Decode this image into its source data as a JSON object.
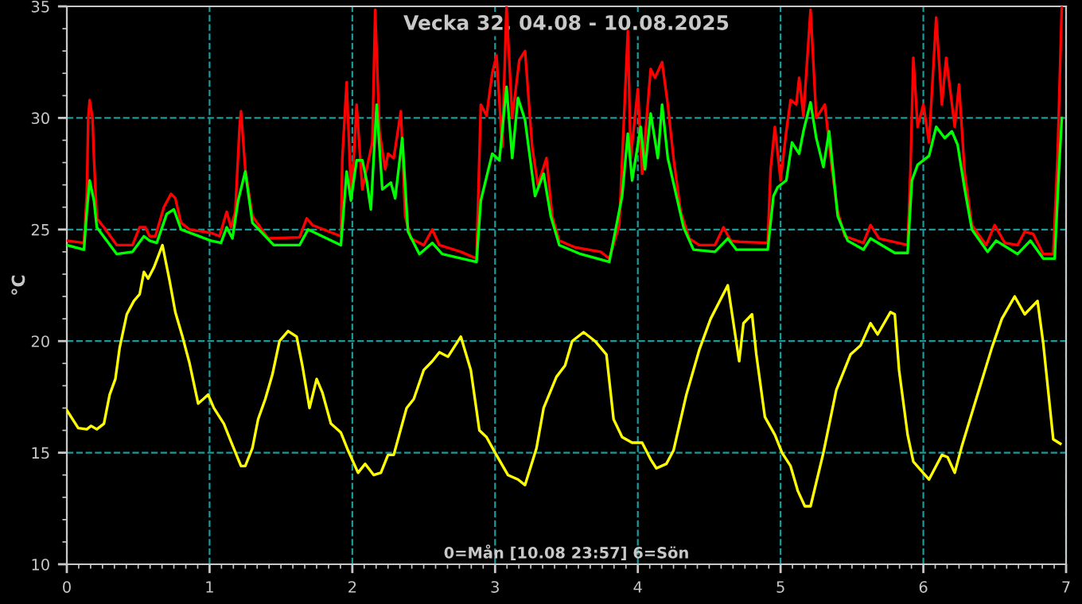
{
  "chart_data": {
    "type": "line",
    "title": "Vecka 32, 04.08 - 10.08.2025",
    "ylabel": "°C",
    "annotations": [
      "0=Mån [10.08 23:57] 6=Sön"
    ],
    "xlim": [
      0,
      7
    ],
    "xticks": [
      0,
      1,
      2,
      3,
      4,
      5,
      6,
      7
    ],
    "ylim": [
      10,
      35
    ],
    "yticks": [
      10,
      15,
      20,
      25,
      30,
      35
    ],
    "grid": true,
    "legend": false,
    "marker": "none",
    "line_style": "solid",
    "series": [
      {
        "color": "#ffff00",
        "x": [
          0,
          0.08,
          0.14,
          0.17,
          0.21,
          0.26,
          0.3,
          0.34,
          0.37,
          0.42,
          0.47,
          0.51,
          0.54,
          0.57,
          0.61,
          0.67,
          0.72,
          0.76,
          0.81,
          0.86,
          0.92,
          0.99,
          1.03,
          1.1,
          1.15,
          1.22,
          1.25,
          1.3,
          1.34,
          1.39,
          1.44,
          1.49,
          1.55,
          1.61,
          1.65,
          1.7,
          1.75,
          1.79,
          1.85,
          1.92,
          1.97,
          2.04,
          2.09,
          2.15,
          2.2,
          2.25,
          2.29,
          2.38,
          2.43,
          2.5,
          2.56,
          2.61,
          2.67,
          2.76,
          2.83,
          2.89,
          2.94,
          3.0,
          3.09,
          3.16,
          3.21,
          3.29,
          3.34,
          3.43,
          3.49,
          3.54,
          3.62,
          3.7,
          3.78,
          3.83,
          3.89,
          3.96,
          4.03,
          4.09,
          4.13,
          4.2,
          4.25,
          4.34,
          4.43,
          4.51,
          4.63,
          4.67,
          4.71,
          4.74,
          4.8,
          4.83,
          4.89,
          4.96,
          5.01,
          5.07,
          5.12,
          5.17,
          5.21,
          5.3,
          5.39,
          5.49,
          5.56,
          5.63,
          5.68,
          5.77,
          5.8,
          5.83,
          5.89,
          5.93,
          6.04,
          6.13,
          6.17,
          6.22,
          6.27,
          6.37,
          6.48,
          6.55,
          6.64,
          6.71,
          6.8,
          6.84,
          6.91,
          6.96
        ],
        "values": [
          16.9,
          16.1,
          16.05,
          16.2,
          16.05,
          16.3,
          17.6,
          18.3,
          19.7,
          21.2,
          21.8,
          22.1,
          23.1,
          22.8,
          23.3,
          24.3,
          22.7,
          21.3,
          20.2,
          19.0,
          17.2,
          17.6,
          17.0,
          16.3,
          15.5,
          14.4,
          14.4,
          15.2,
          16.5,
          17.4,
          18.5,
          20.0,
          20.45,
          20.2,
          18.9,
          17.0,
          18.3,
          17.7,
          16.3,
          15.9,
          15.1,
          14.1,
          14.5,
          14.0,
          14.1,
          14.9,
          14.9,
          17.0,
          17.4,
          18.7,
          19.1,
          19.5,
          19.3,
          20.2,
          18.7,
          16.0,
          15.7,
          15.0,
          14.0,
          13.8,
          13.55,
          15.2,
          17.0,
          18.4,
          18.9,
          20.0,
          20.4,
          20.0,
          19.4,
          16.5,
          15.7,
          15.45,
          15.45,
          14.7,
          14.3,
          14.5,
          15.1,
          17.6,
          19.6,
          21.0,
          22.5,
          20.8,
          19.1,
          20.8,
          21.2,
          19.4,
          16.6,
          15.8,
          15.0,
          14.4,
          13.3,
          12.6,
          12.6,
          15.0,
          17.8,
          19.4,
          19.8,
          20.8,
          20.3,
          21.3,
          21.2,
          18.7,
          15.8,
          14.6,
          13.8,
          14.9,
          14.8,
          14.1,
          15.3,
          17.4,
          19.7,
          21.0,
          22.0,
          21.2,
          21.8,
          19.9,
          15.6,
          15.4
        ]
      },
      {
        "color": "#ff0000",
        "x": [
          0,
          0.12,
          0.14,
          0.15,
          0.16,
          0.18,
          0.19,
          0.21,
          0.26,
          0.35,
          0.46,
          0.51,
          0.55,
          0.58,
          0.62,
          0.68,
          0.73,
          0.76,
          0.8,
          0.86,
          1.01,
          1.07,
          1.12,
          1.15,
          1.18,
          1.21,
          1.22,
          1.25,
          1.3,
          1.41,
          1.63,
          1.68,
          1.72,
          1.92,
          1.93,
          1.96,
          1.99,
          2.01,
          2.03,
          2.07,
          2.1,
          2.14,
          2.16,
          2.19,
          2.23,
          2.25,
          2.29,
          2.34,
          2.37,
          2.41,
          2.5,
          2.56,
          2.61,
          2.76,
          2.87,
          2.9,
          2.94,
          2.98,
          3.01,
          3.05,
          3.08,
          3.12,
          3.17,
          3.21,
          3.26,
          3.3,
          3.36,
          3.4,
          3.45,
          3.56,
          3.74,
          3.8,
          3.87,
          3.91,
          3.93,
          3.95,
          4.0,
          4.03,
          4.09,
          4.12,
          4.17,
          4.21,
          4.25,
          4.3,
          4.36,
          4.43,
          4.54,
          4.6,
          4.65,
          4.71,
          4.91,
          4.93,
          4.96,
          5.0,
          5.04,
          5.07,
          5.11,
          5.13,
          5.16,
          5.21,
          5.25,
          5.31,
          5.36,
          5.4,
          5.45,
          5.58,
          5.63,
          5.69,
          5.89,
          5.91,
          5.93,
          5.96,
          6.0,
          6.04,
          6.09,
          6.13,
          6.16,
          6.22,
          6.25,
          6.29,
          6.34,
          6.44,
          6.5,
          6.57,
          6.66,
          6.71,
          6.77,
          6.84,
          6.91,
          6.94,
          6.97
        ],
        "values": [
          24.5,
          24.4,
          26.6,
          30.0,
          30.8,
          30.0,
          28.2,
          25.5,
          25.1,
          24.3,
          24.3,
          25.1,
          25.1,
          24.7,
          24.7,
          26.0,
          26.6,
          26.4,
          25.3,
          25.0,
          24.85,
          24.7,
          25.8,
          25.1,
          25.8,
          29.6,
          30.3,
          27.7,
          25.6,
          24.6,
          24.65,
          25.5,
          25.2,
          24.7,
          28.2,
          31.6,
          26.8,
          28.2,
          30.6,
          26.8,
          27.7,
          28.9,
          34.85,
          29.4,
          27.7,
          28.4,
          28.2,
          30.3,
          25.6,
          24.6,
          24.3,
          25.0,
          24.3,
          24.0,
          23.7,
          30.6,
          30.1,
          32.0,
          32.8,
          28.7,
          35.0,
          30.0,
          32.6,
          33.0,
          28.7,
          27.0,
          28.2,
          25.6,
          24.5,
          24.2,
          24.0,
          23.7,
          25.2,
          31.0,
          33.9,
          28.2,
          31.3,
          27.5,
          32.2,
          31.8,
          32.5,
          30.6,
          28.2,
          25.8,
          24.6,
          24.3,
          24.3,
          25.1,
          24.5,
          24.45,
          24.4,
          27.7,
          29.6,
          27.2,
          29.4,
          30.8,
          30.6,
          31.8,
          30.1,
          34.85,
          30.0,
          30.6,
          27.7,
          25.8,
          24.7,
          24.4,
          25.2,
          24.6,
          24.3,
          27.7,
          32.7,
          29.6,
          30.6,
          28.9,
          34.5,
          30.6,
          32.7,
          29.6,
          31.5,
          27.5,
          25.2,
          24.3,
          25.2,
          24.4,
          24.3,
          24.9,
          24.8,
          23.9,
          23.9,
          28.2,
          35.0
        ]
      },
      {
        "color": "#00ff00",
        "x": [
          0,
          0.12,
          0.14,
          0.16,
          0.19,
          0.21,
          0.35,
          0.46,
          0.54,
          0.58,
          0.63,
          0.7,
          0.75,
          0.8,
          1.01,
          1.08,
          1.12,
          1.16,
          1.2,
          1.25,
          1.3,
          1.45,
          1.63,
          1.69,
          1.92,
          1.96,
          1.99,
          2.03,
          2.07,
          2.1,
          2.13,
          2.17,
          2.21,
          2.27,
          2.3,
          2.35,
          2.39,
          2.47,
          2.56,
          2.63,
          2.87,
          2.9,
          2.98,
          3.03,
          3.08,
          3.12,
          3.16,
          3.21,
          3.28,
          3.34,
          3.39,
          3.45,
          3.6,
          3.8,
          3.89,
          3.93,
          3.96,
          4.02,
          4.05,
          4.09,
          4.14,
          4.17,
          4.21,
          4.26,
          4.32,
          4.39,
          4.54,
          4.63,
          4.69,
          4.91,
          4.95,
          4.98,
          5.04,
          5.08,
          5.13,
          5.16,
          5.21,
          5.25,
          5.3,
          5.34,
          5.4,
          5.47,
          5.58,
          5.63,
          5.8,
          5.89,
          5.92,
          5.96,
          6.04,
          6.09,
          6.15,
          6.2,
          6.24,
          6.29,
          6.34,
          6.45,
          6.51,
          6.66,
          6.75,
          6.84,
          6.92,
          6.95,
          6.97
        ],
        "values": [
          24.3,
          24.1,
          25.8,
          27.2,
          26.3,
          25.1,
          23.9,
          24.0,
          24.7,
          24.5,
          24.4,
          25.7,
          25.9,
          25.0,
          24.5,
          24.4,
          25.1,
          24.6,
          26.3,
          27.6,
          25.3,
          24.3,
          24.3,
          25.0,
          24.3,
          27.6,
          26.3,
          28.1,
          28.1,
          27.2,
          25.9,
          30.6,
          26.8,
          27.1,
          26.4,
          29.1,
          24.9,
          23.9,
          24.4,
          23.9,
          23.55,
          26.3,
          28.4,
          28.1,
          31.4,
          28.2,
          30.9,
          29.9,
          26.5,
          27.5,
          25.6,
          24.3,
          23.9,
          23.55,
          26.5,
          29.3,
          27.2,
          29.6,
          27.7,
          30.2,
          28.2,
          30.6,
          28.2,
          26.8,
          25.1,
          24.1,
          24.0,
          24.6,
          24.1,
          24.1,
          26.5,
          26.9,
          27.2,
          28.9,
          28.4,
          29.4,
          30.7,
          29.1,
          27.8,
          29.4,
          25.6,
          24.5,
          24.1,
          24.6,
          23.95,
          23.95,
          27.2,
          27.9,
          28.3,
          29.6,
          29.1,
          29.4,
          28.8,
          26.8,
          25.0,
          24.0,
          24.5,
          23.9,
          24.5,
          23.7,
          23.7,
          27.7,
          30.0
        ]
      }
    ]
  }
}
